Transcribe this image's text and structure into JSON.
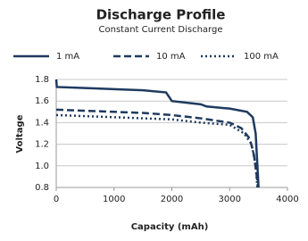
{
  "chart_data": {
    "type": "line",
    "title": "Discharge Profile",
    "subtitle": "Constant Current Discharge",
    "x_label": "Capacity (mAh)",
    "y_label": "Voltage",
    "xlim": [
      0,
      4000
    ],
    "xticks": [
      0,
      1000,
      2000,
      3000,
      4000
    ],
    "ylim": [
      0.8,
      1.8
    ],
    "yticks": [
      {
        "value": 0.8,
        "label": "0.8"
      },
      {
        "value": 1.0,
        "label": "1.0"
      },
      1.2,
      1.4,
      1.6,
      1.8
    ],
    "grid": true,
    "legend": "top",
    "series": [
      {
        "name": "1 mA",
        "color": "#1f3a5f",
        "dash": "solid",
        "x": [
          0,
          10,
          500,
          1500,
          1900,
          2000,
          2500,
          2600,
          3000,
          3300,
          3400,
          3450,
          3480,
          3500
        ],
        "values": [
          1.8,
          1.73,
          1.72,
          1.7,
          1.68,
          1.6,
          1.57,
          1.55,
          1.53,
          1.5,
          1.45,
          1.3,
          1.0,
          0.8
        ]
      },
      {
        "name": "10 mA",
        "color": "#1f3a5f",
        "dash": "dashed",
        "x": [
          0,
          500,
          1500,
          2000,
          2500,
          3000,
          3200,
          3350,
          3420,
          3470,
          3490
        ],
        "values": [
          1.52,
          1.51,
          1.49,
          1.47,
          1.44,
          1.4,
          1.35,
          1.25,
          1.1,
          0.9,
          0.8
        ]
      },
      {
        "name": "100 mA",
        "color": "#1f3a5f",
        "dash": "dotted",
        "x": [
          0,
          1000,
          2000,
          2500,
          3000,
          3250,
          3380,
          3450,
          3480
        ],
        "values": [
          1.47,
          1.45,
          1.43,
          1.4,
          1.38,
          1.3,
          1.2,
          1.0,
          0.8
        ]
      }
    ]
  }
}
